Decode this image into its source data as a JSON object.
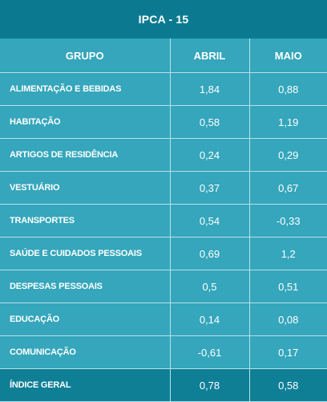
{
  "title": "IPCA - 15",
  "headers": {
    "group": "GRUPO",
    "april": "ABRIL",
    "may": "MAIO"
  },
  "rows": [
    {
      "group": "ALIMENTAÇÃO E BEBIDAS",
      "april": "1,84",
      "may": "0,88"
    },
    {
      "group": "HABITAÇÃO",
      "april": "0,58",
      "may": "1,19"
    },
    {
      "group": "ARTIGOS DE RESIDÊNCIA",
      "april": "0,24",
      "may": "0,29"
    },
    {
      "group": "VESTUÁRIO",
      "april": "0,37",
      "may": "0,67"
    },
    {
      "group": "TRANSPORTES",
      "april": "0,54",
      "may": "-0,33"
    },
    {
      "group": "SAÚDE E CUIDADOS PESSOAIS",
      "april": "0,69",
      "may": "1,2"
    },
    {
      "group": "DESPESAS PESSOAIS",
      "april": "0,5",
      "may": "0,51"
    },
    {
      "group": "EDUCAÇÃO",
      "april": "0,14",
      "may": "0,08"
    },
    {
      "group": "COMUNICAÇÃO",
      "april": "-0,61",
      "may": "0,17"
    }
  ],
  "total": {
    "group": "ÍNDICE GERAL",
    "april": "0,78",
    "may": "0,58"
  },
  "colors": {
    "header": "#0b7a91",
    "body": "#35a6bb",
    "total": "#0f7f96",
    "grid": "#b7e1ea",
    "text": "#ffffff"
  }
}
